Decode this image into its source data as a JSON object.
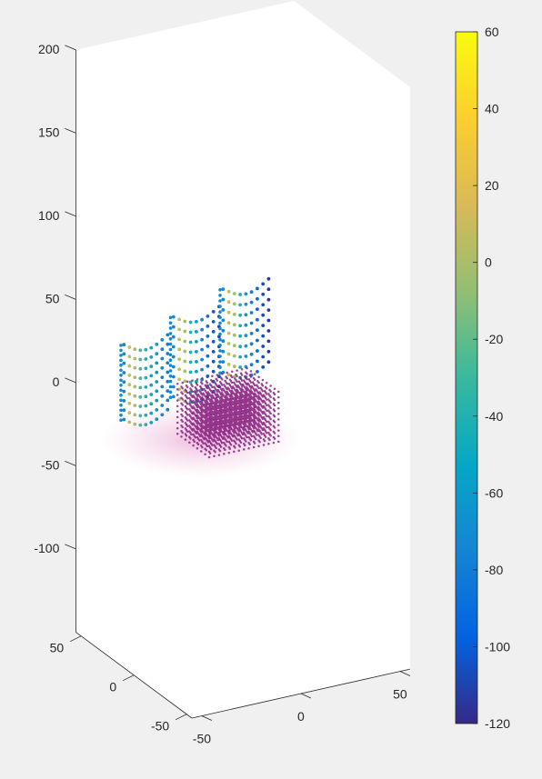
{
  "chart_data": {
    "type": "scatter3d",
    "title": "",
    "xlabel": "",
    "ylabel": "",
    "zlabel": "",
    "axes": {
      "z_ticks": [
        200,
        150,
        100,
        50,
        0,
        -50,
        -100
      ],
      "y_ticks": [
        50,
        0,
        -50
      ],
      "x_ticks": [
        -50,
        0,
        50
      ],
      "zlim": [
        -150,
        200
      ],
      "grid": false,
      "box": true
    },
    "colorbar": {
      "location": "right",
      "colormap": "parula",
      "limits": [
        -120,
        60
      ],
      "ticks": [
        60,
        40,
        20,
        0,
        -20,
        -40,
        -60,
        -80,
        -100,
        -120
      ],
      "stops": [
        "#352a87",
        "#0363e1",
        "#1485d4",
        "#06a7c6",
        "#38b99e",
        "#92bf73",
        "#d9ba56",
        "#fcce2e",
        "#f9fb0e"
      ]
    },
    "series": [
      {
        "kind": "panel",
        "x_range": [
          -60,
          -38
        ],
        "z_range": [
          5,
          50
        ],
        "rows": 9,
        "cols": 9,
        "color_range": [
          -80,
          15
        ]
      },
      {
        "kind": "panel",
        "x_range": [
          -35,
          -12
        ],
        "z_range": [
          12,
          60
        ],
        "rows": 9,
        "cols": 9,
        "color_range": [
          -110,
          15
        ]
      },
      {
        "kind": "panel",
        "x_range": [
          -10,
          13
        ],
        "z_range": [
          20,
          70
        ],
        "rows": 9,
        "cols": 9,
        "color_range": [
          -115,
          15
        ]
      },
      {
        "kind": "block",
        "x_range": [
          -25,
          10
        ],
        "y_range": [
          -15,
          15
        ],
        "z_range": [
          -20,
          10
        ],
        "value": -110
      }
    ]
  }
}
